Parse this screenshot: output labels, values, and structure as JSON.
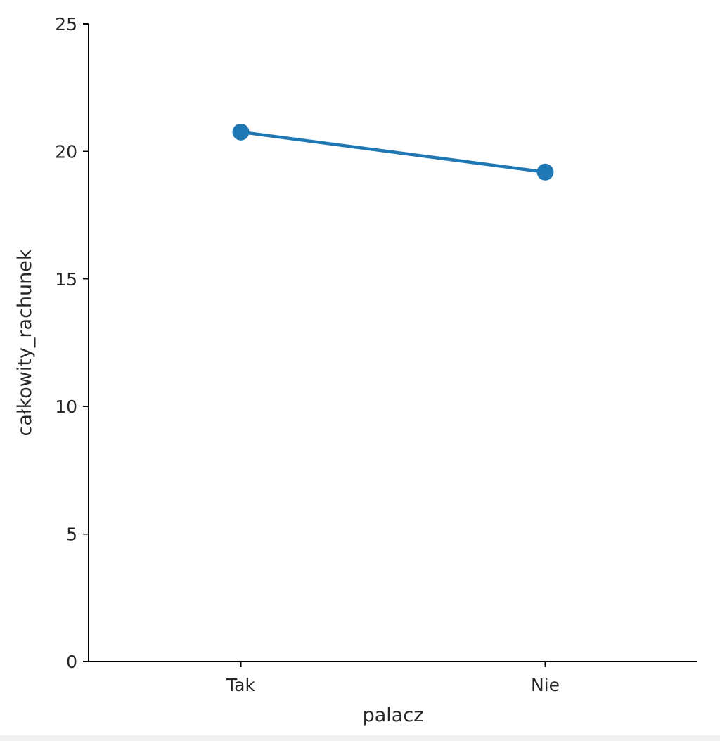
{
  "chart_data": {
    "type": "line",
    "title": "",
    "xlabel": "palacz",
    "ylabel": "całkowity_rachunek",
    "categories": [
      "Tak",
      "Nie"
    ],
    "series": [
      {
        "values": [
          20.76,
          19.19
        ],
        "color": "#1f77b4"
      }
    ],
    "ylim": [
      0,
      25
    ],
    "yticks": [
      0,
      5,
      10,
      15,
      20,
      25
    ],
    "grid": false,
    "legend": "none",
    "marker": "circle"
  }
}
